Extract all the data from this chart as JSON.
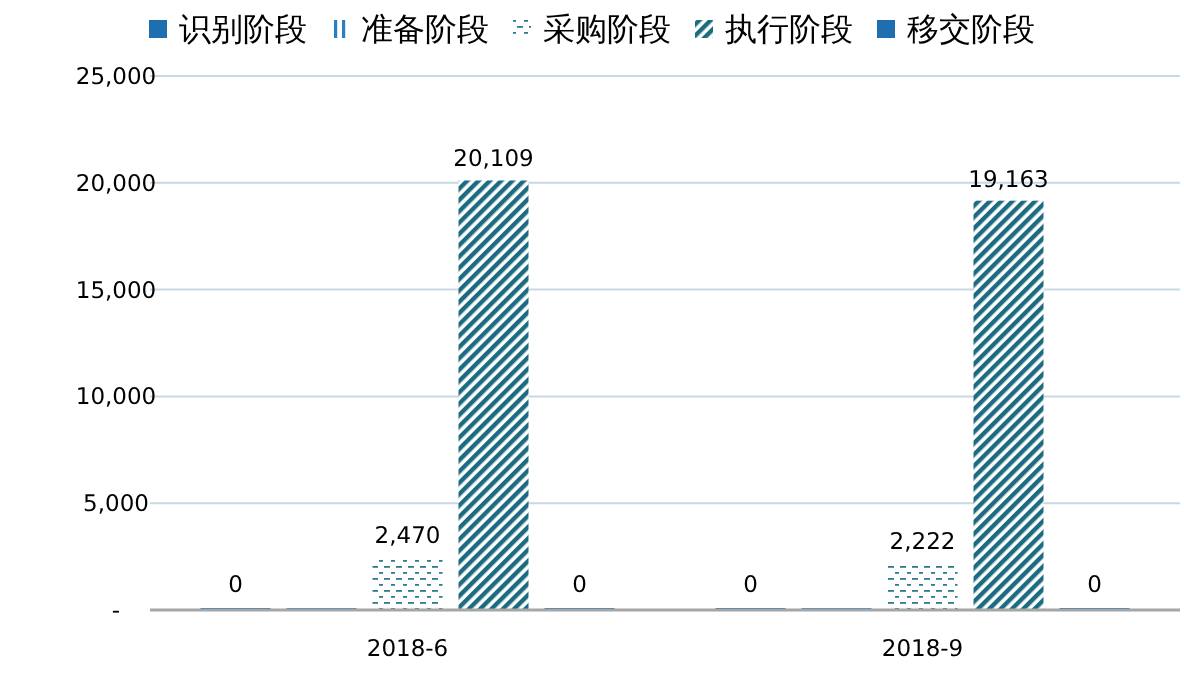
{
  "chart_data": {
    "type": "bar",
    "categories": [
      "2018-6",
      "2018-9"
    ],
    "series": [
      {
        "name": "识别阶段",
        "color": "#1f6fb0",
        "values": [
          0,
          0
        ],
        "value_labels": [
          "0",
          "0"
        ]
      },
      {
        "name": "准备阶段",
        "color": "#2a7fc0",
        "values": [
          0,
          0
        ],
        "value_labels": [
          null,
          null
        ]
      },
      {
        "name": "采购阶段",
        "color": "#2e7d8c",
        "values": [
          2470,
          2222
        ],
        "value_labels": [
          "2,470",
          "2,222"
        ]
      },
      {
        "name": "执行阶段",
        "color": "#1d6b80",
        "values": [
          20109,
          19163
        ],
        "value_labels": [
          "20,109",
          "19,163"
        ]
      },
      {
        "name": "移交阶段",
        "color": "#1f6fb0",
        "values": [
          0,
          0
        ],
        "value_labels": [
          "0",
          "0"
        ]
      }
    ],
    "ylim": [
      0,
      25000
    ],
    "yticks": [
      {
        "value": 0,
        "label": "-"
      },
      {
        "value": 5000,
        "label": "5,000"
      },
      {
        "value": 10000,
        "label": "10,000"
      },
      {
        "value": 15000,
        "label": "15,000"
      },
      {
        "value": 20000,
        "label": "20,000"
      },
      {
        "value": 25000,
        "label": "25,000"
      }
    ],
    "grid": "y",
    "legend": "top"
  }
}
